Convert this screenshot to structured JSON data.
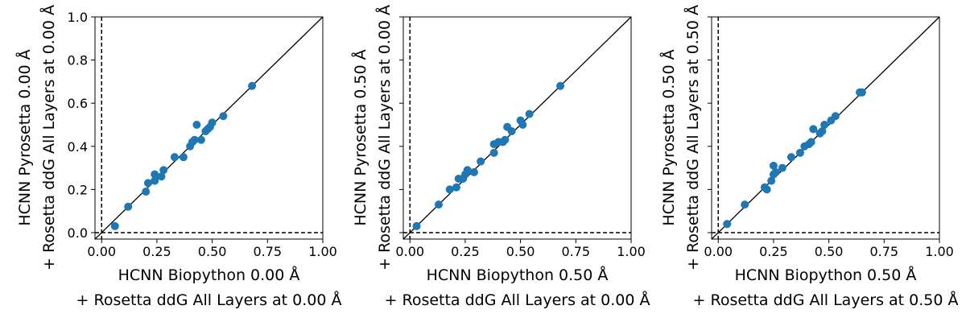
{
  "chart_data": [
    {
      "type": "scatter",
      "xlabel_lines": [
        "HCNN Biopython 0.00 Å",
        "+ Rosetta ddG All Layers at 0.00 Å"
      ],
      "ylabel_lines": [
        "HCNN Pyrosetta 0.00 Å",
        "+ Rosetta ddG All Layers at 0.00 Å"
      ],
      "xlim": [
        -0.03,
        1.0
      ],
      "ylim": [
        -0.03,
        1.0
      ],
      "xticks": [
        "0.00",
        "0.25",
        "0.50",
        "0.75",
        "1.00"
      ],
      "yticks": [
        "0.0",
        "0.2",
        "0.4",
        "0.6",
        "0.8",
        "1.0"
      ],
      "show_ytick_labels": true,
      "point_color": "#1f77b4",
      "points": [
        {
          "x": 0.06,
          "y": 0.03
        },
        {
          "x": 0.12,
          "y": 0.12
        },
        {
          "x": 0.2,
          "y": 0.19
        },
        {
          "x": 0.21,
          "y": 0.23
        },
        {
          "x": 0.24,
          "y": 0.24
        },
        {
          "x": 0.24,
          "y": 0.27
        },
        {
          "x": 0.27,
          "y": 0.26
        },
        {
          "x": 0.28,
          "y": 0.29
        },
        {
          "x": 0.33,
          "y": 0.35
        },
        {
          "x": 0.37,
          "y": 0.35
        },
        {
          "x": 0.4,
          "y": 0.4
        },
        {
          "x": 0.41,
          "y": 0.42
        },
        {
          "x": 0.42,
          "y": 0.43
        },
        {
          "x": 0.43,
          "y": 0.5
        },
        {
          "x": 0.45,
          "y": 0.43
        },
        {
          "x": 0.47,
          "y": 0.47
        },
        {
          "x": 0.48,
          "y": 0.48
        },
        {
          "x": 0.49,
          "y": 0.49
        },
        {
          "x": 0.5,
          "y": 0.51
        },
        {
          "x": 0.55,
          "y": 0.54
        },
        {
          "x": 0.68,
          "y": 0.68
        }
      ]
    },
    {
      "type": "scatter",
      "xlabel_lines": [
        "HCNN Biopython 0.50 Å",
        "+ Rosetta ddG All Layers at 0.00 Å"
      ],
      "ylabel_lines": [
        "HCNN Pyrosetta 0.50 Å",
        "+ Rosetta ddG All Layers at 0.00 Å"
      ],
      "xlim": [
        -0.03,
        1.0
      ],
      "ylim": [
        -0.03,
        1.0
      ],
      "xticks": [
        "0.00",
        "0.25",
        "0.50",
        "0.75",
        "1.00"
      ],
      "yticks": [
        "0.0",
        "0.2",
        "0.4",
        "0.6",
        "0.8",
        "1.0"
      ],
      "show_ytick_labels": false,
      "point_color": "#1f77b4",
      "points": [
        {
          "x": 0.03,
          "y": 0.03
        },
        {
          "x": 0.13,
          "y": 0.13
        },
        {
          "x": 0.18,
          "y": 0.2
        },
        {
          "x": 0.21,
          "y": 0.21
        },
        {
          "x": 0.22,
          "y": 0.25
        },
        {
          "x": 0.24,
          "y": 0.25
        },
        {
          "x": 0.25,
          "y": 0.27
        },
        {
          "x": 0.26,
          "y": 0.29
        },
        {
          "x": 0.29,
          "y": 0.28
        },
        {
          "x": 0.32,
          "y": 0.33
        },
        {
          "x": 0.38,
          "y": 0.37
        },
        {
          "x": 0.38,
          "y": 0.41
        },
        {
          "x": 0.4,
          "y": 0.42
        },
        {
          "x": 0.42,
          "y": 0.42
        },
        {
          "x": 0.43,
          "y": 0.43
        },
        {
          "x": 0.44,
          "y": 0.49
        },
        {
          "x": 0.46,
          "y": 0.47
        },
        {
          "x": 0.5,
          "y": 0.52
        },
        {
          "x": 0.51,
          "y": 0.5
        },
        {
          "x": 0.54,
          "y": 0.55
        },
        {
          "x": 0.68,
          "y": 0.68
        }
      ]
    },
    {
      "type": "scatter",
      "xlabel_lines": [
        "HCNN Biopython 0.50 Å",
        "+ Rosetta ddG All Layers at 0.50 Å"
      ],
      "ylabel_lines": [
        "HCNN Pyrosetta 0.50 Å",
        "+ Rosetta ddG All Layers at 0.50 Å"
      ],
      "xlim": [
        -0.03,
        1.0
      ],
      "ylim": [
        -0.03,
        1.0
      ],
      "xticks": [
        "0.00",
        "0.25",
        "0.50",
        "0.75",
        "1.00"
      ],
      "yticks": [
        "0.0",
        "0.2",
        "0.4",
        "0.6",
        "0.8",
        "1.0"
      ],
      "show_ytick_labels": false,
      "point_color": "#1f77b4",
      "points": [
        {
          "x": 0.04,
          "y": 0.04
        },
        {
          "x": 0.12,
          "y": 0.13
        },
        {
          "x": 0.21,
          "y": 0.21
        },
        {
          "x": 0.22,
          "y": 0.2
        },
        {
          "x": 0.24,
          "y": 0.24
        },
        {
          "x": 0.25,
          "y": 0.27
        },
        {
          "x": 0.25,
          "y": 0.31
        },
        {
          "x": 0.26,
          "y": 0.28
        },
        {
          "x": 0.29,
          "y": 0.3
        },
        {
          "x": 0.33,
          "y": 0.35
        },
        {
          "x": 0.37,
          "y": 0.37
        },
        {
          "x": 0.39,
          "y": 0.4
        },
        {
          "x": 0.41,
          "y": 0.41
        },
        {
          "x": 0.42,
          "y": 0.42
        },
        {
          "x": 0.43,
          "y": 0.48
        },
        {
          "x": 0.46,
          "y": 0.46
        },
        {
          "x": 0.47,
          "y": 0.47
        },
        {
          "x": 0.48,
          "y": 0.5
        },
        {
          "x": 0.51,
          "y": 0.52
        },
        {
          "x": 0.53,
          "y": 0.54
        },
        {
          "x": 0.64,
          "y": 0.65
        },
        {
          "x": 0.65,
          "y": 0.65
        }
      ]
    }
  ]
}
